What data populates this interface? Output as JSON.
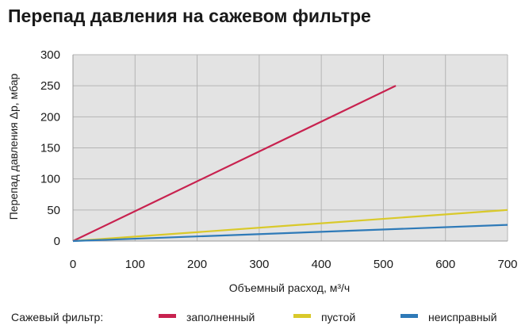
{
  "chart_data": {
    "type": "line",
    "title": "Перепад давления на сажевом фильтре",
    "xlabel": "Объемный расход, м³/ч",
    "ylabel": "Перепад давления Δp, мбар",
    "xlim": [
      0,
      700
    ],
    "ylim": [
      0,
      300
    ],
    "x_ticks": [
      0,
      100,
      200,
      300,
      400,
      500,
      600,
      700
    ],
    "y_ticks": [
      0,
      50,
      100,
      150,
      200,
      250,
      300
    ],
    "grid": true,
    "legend_title": "Сажевый фильтр:",
    "legend_position": "bottom",
    "series": [
      {
        "name": "заполненный",
        "color": "#c8224f",
        "x": [
          0,
          520
        ],
        "y": [
          0,
          250
        ]
      },
      {
        "name": "пустой",
        "color": "#d9c92a",
        "x": [
          0,
          700
        ],
        "y": [
          0,
          50
        ]
      },
      {
        "name": "неисправный",
        "color": "#2e7ab8",
        "x": [
          0,
          700
        ],
        "y": [
          0,
          26
        ]
      }
    ]
  }
}
